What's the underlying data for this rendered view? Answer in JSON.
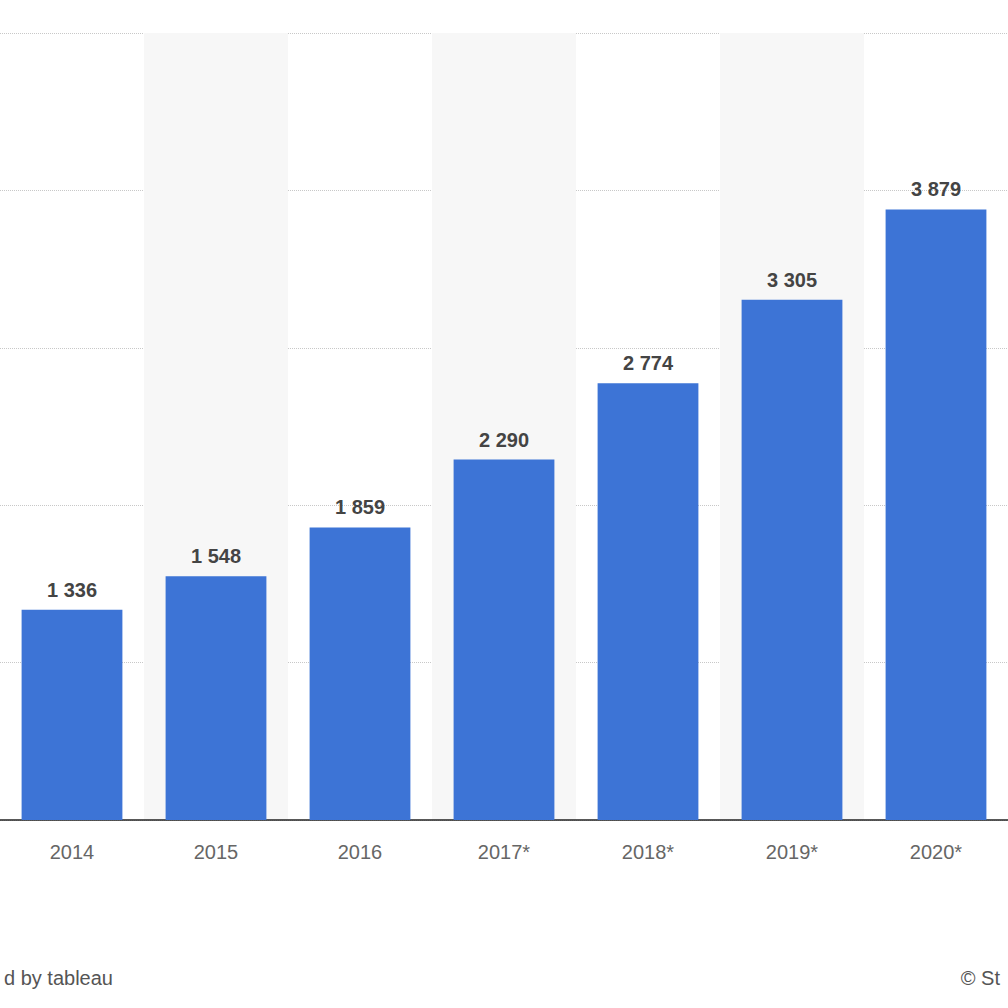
{
  "chart_data": {
    "type": "bar",
    "categories": [
      "2014",
      "2015",
      "2016",
      "2017*",
      "2018*",
      "2019*",
      "2020*"
    ],
    "values": [
      1336,
      1548,
      1859,
      2290,
      2774,
      3305,
      3879
    ],
    "value_labels": [
      "1 336",
      "1 548",
      "1 859",
      "2 290",
      "2 774",
      "3 305",
      "3 879"
    ],
    "color": "#3d74d6",
    "ylim": [
      0,
      5000
    ],
    "yticks": [
      0,
      1000,
      2000,
      3000,
      4000,
      5000
    ],
    "grid": true,
    "data_labels": true,
    "tick_labels": "x",
    "annotations": [
      "d by tableau",
      "© St"
    ]
  }
}
